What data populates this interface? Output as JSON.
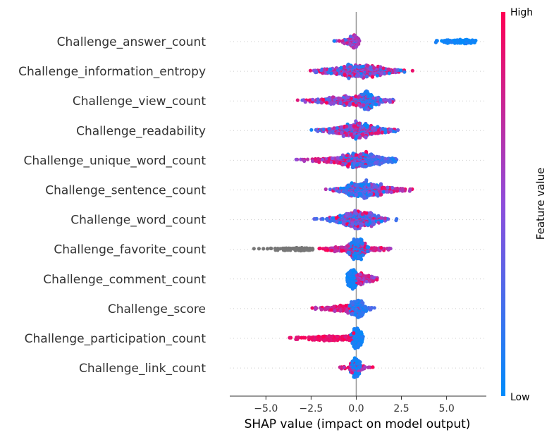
{
  "chart_data": {
    "type": "scatter",
    "subtype": "shap-beeswarm",
    "title": "",
    "xlabel": "SHAP value (impact on model output)",
    "ylabel": "",
    "xlim": [
      -7.0,
      7.2
    ],
    "xticks": [
      -5.0,
      -2.5,
      0.0,
      2.5,
      5.0
    ],
    "xtick_labels": [
      "−5.0",
      "−2.5",
      "0.0",
      "2.5",
      "5.0"
    ],
    "grid": false,
    "colorbar": {
      "label": "Feature value",
      "high_label": "High",
      "low_label": "Low",
      "low_color": "#008bfb",
      "mid_color": "#8e4ddb",
      "high_color": "#ff0052"
    },
    "missing_value_color": "#777777",
    "features": [
      {
        "name": "Challenge_answer_count",
        "clusters": [
          {
            "min": -1.7,
            "max": 0.2,
            "center": -0.3,
            "count": 40,
            "spread": 0.5,
            "low": 0.05,
            "high": 0.85
          },
          {
            "min": -0.4,
            "max": 0.15,
            "center": -0.1,
            "count": 120,
            "spread": 0.2,
            "low": 0.3,
            "high": 0.9
          },
          {
            "min": 2.5,
            "max": 6.7,
            "center": 5.7,
            "count": 80,
            "spread": 0.6,
            "low": 0.0,
            "high": 0.1
          }
        ]
      },
      {
        "name": "Challenge_information_entropy",
        "clusters": [
          {
            "min": -3.2,
            "max": 3.4,
            "center": 0.2,
            "count": 700,
            "spread": 1.0,
            "low": 0.0,
            "high": 1.0
          }
        ]
      },
      {
        "name": "Challenge_view_count",
        "clusters": [
          {
            "min": -3.3,
            "max": 2.2,
            "center": -0.4,
            "count": 400,
            "spread": 1.0,
            "low": 0.2,
            "high": 1.0
          },
          {
            "min": -0.2,
            "max": 1.4,
            "center": 0.6,
            "count": 260,
            "spread": 0.35,
            "low": 0.0,
            "high": 0.25
          }
        ]
      },
      {
        "name": "Challenge_readability",
        "clusters": [
          {
            "min": -2.8,
            "max": 2.6,
            "center": 0.1,
            "count": 650,
            "spread": 0.8,
            "low": 0.0,
            "high": 1.0
          }
        ]
      },
      {
        "name": "Challenge_unique_word_count",
        "clusters": [
          {
            "min": -3.4,
            "max": 0.6,
            "center": -0.6,
            "count": 280,
            "spread": 0.8,
            "low": 0.5,
            "high": 1.0
          },
          {
            "min": -1.0,
            "max": 2.3,
            "center": 0.6,
            "count": 420,
            "spread": 0.7,
            "low": 0.0,
            "high": 0.4
          }
        ]
      },
      {
        "name": "Challenge_sentence_count",
        "clusters": [
          {
            "min": -2.6,
            "max": 3.4,
            "center": 0.8,
            "count": 250,
            "spread": 1.0,
            "low": 0.4,
            "high": 1.0
          },
          {
            "min": -1.5,
            "max": 2.0,
            "center": 0.3,
            "count": 420,
            "spread": 0.6,
            "low": 0.0,
            "high": 0.4
          }
        ]
      },
      {
        "name": "Challenge_word_count",
        "clusters": [
          {
            "min": -4.2,
            "max": 2.3,
            "center": 0.0,
            "count": 420,
            "spread": 0.8,
            "low": 0.0,
            "high": 0.45
          },
          {
            "min": -1.8,
            "max": 1.6,
            "center": 0.1,
            "count": 260,
            "spread": 0.7,
            "low": 0.35,
            "high": 1.0
          }
        ]
      },
      {
        "name": "Challenge_favorite_count",
        "clusters": [
          {
            "min": -6.4,
            "max": -2.4,
            "center": -3.2,
            "count": 60,
            "spread": 0.8,
            "missing": true
          },
          {
            "min": -2.3,
            "max": 2.2,
            "center": 0.0,
            "count": 240,
            "spread": 0.8,
            "low": 0.55,
            "high": 1.0
          },
          {
            "min": -0.5,
            "max": 0.7,
            "center": 0.0,
            "count": 300,
            "spread": 0.25,
            "low": 0.0,
            "high": 0.2
          }
        ]
      },
      {
        "name": "Challenge_comment_count",
        "clusters": [
          {
            "min": -0.5,
            "max": 0.05,
            "center": -0.25,
            "count": 230,
            "spread": 0.15,
            "low": 0.0,
            "high": 0.12
          },
          {
            "min": 0.0,
            "max": 1.2,
            "center": 0.3,
            "count": 160,
            "spread": 0.35,
            "low": 0.4,
            "high": 1.0
          }
        ]
      },
      {
        "name": "Challenge_score",
        "clusters": [
          {
            "min": -2.6,
            "max": 0.2,
            "center": -0.5,
            "count": 140,
            "spread": 0.7,
            "low": 0.6,
            "high": 1.0
          },
          {
            "min": -0.5,
            "max": 1.3,
            "center": 0.1,
            "count": 260,
            "spread": 0.25,
            "low": 0.0,
            "high": 0.3
          }
        ]
      },
      {
        "name": "Challenge_participation_count",
        "clusters": [
          {
            "min": -3.9,
            "max": 0.0,
            "center": -1.2,
            "count": 160,
            "spread": 0.9,
            "low": 0.82,
            "high": 1.0
          },
          {
            "min": -0.3,
            "max": 0.4,
            "center": 0.05,
            "count": 260,
            "spread": 0.15,
            "low": 0.0,
            "high": 0.15
          }
        ]
      },
      {
        "name": "Challenge_link_count",
        "clusters": [
          {
            "min": -0.4,
            "max": 0.4,
            "center": 0.0,
            "count": 220,
            "spread": 0.15,
            "low": 0.0,
            "high": 0.15
          },
          {
            "min": -1.0,
            "max": 1.0,
            "center": 0.0,
            "count": 40,
            "spread": 0.5,
            "low": 0.55,
            "high": 1.0
          }
        ]
      }
    ]
  }
}
